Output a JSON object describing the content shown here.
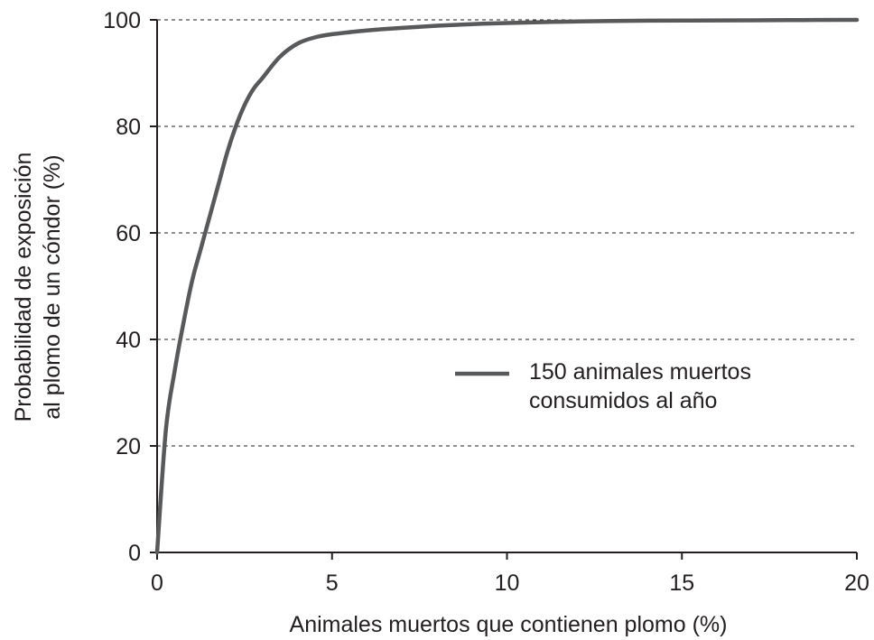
{
  "chart_data": {
    "type": "line",
    "xlabel": "Animales muertos que contienen plomo (%)",
    "ylabel_lines": [
      "Probabilidad de exposición",
      "al plomo de un cóndor (%)"
    ],
    "xlim": [
      0,
      20
    ],
    "ylim": [
      0,
      100
    ],
    "x_ticks": [
      "0",
      "5",
      "10",
      "15",
      "20"
    ],
    "y_ticks": [
      "0",
      "20",
      "40",
      "60",
      "80",
      "100"
    ],
    "grid": "horizontal dashed",
    "legend_position": "right",
    "series": [
      {
        "name_lines": [
          "150 animales muertos",
          "consumidos al año"
        ],
        "color": "#58595b",
        "x": [
          0,
          0.25,
          0.5,
          0.75,
          1.0,
          1.25,
          1.5,
          1.75,
          2.0,
          2.25,
          2.5,
          2.75,
          3.0,
          3.5,
          4.0,
          4.5,
          5.0,
          6.0,
          7.0,
          8.0,
          9.0,
          10.0,
          12.0,
          14.0,
          16.0,
          18.0,
          20.0
        ],
        "y": [
          0,
          23,
          34,
          43,
          51,
          57,
          63,
          69,
          75,
          80,
          84,
          87,
          89,
          93,
          95.5,
          96.7,
          97.3,
          98,
          98.5,
          98.9,
          99.2,
          99.4,
          99.7,
          99.85,
          99.9,
          99.95,
          100
        ]
      }
    ]
  }
}
